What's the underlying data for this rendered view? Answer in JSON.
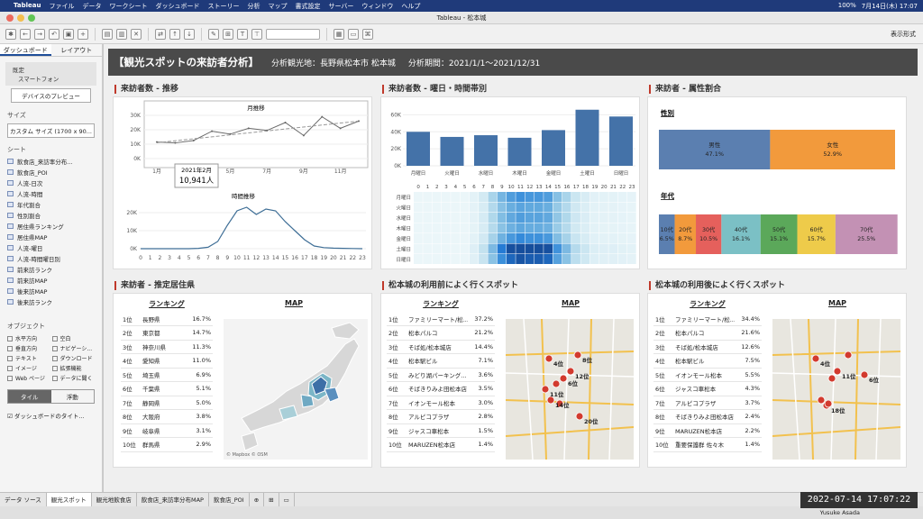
{
  "mac": {
    "menus": [
      "Tableau",
      "ファイル",
      "データ",
      "ワークシート",
      "ダッシュボード",
      "ストーリー",
      "分析",
      "マップ",
      "書式設定",
      "サーバー",
      "ウィンドウ",
      "ヘルプ"
    ],
    "battery": "100%",
    "datetime": "7月14日(木) 17:07"
  },
  "window": {
    "title": "Tableau - 松本城"
  },
  "toolbar": {
    "present_label": "表示形式"
  },
  "left": {
    "tabs": [
      "ダッシュボード",
      "レイアウト"
    ],
    "device_label": "既定",
    "device_value": "スマートフォン",
    "preview_btn": "デバイスのプレビュー",
    "size_label": "サイズ",
    "size_value": "カスタム サイズ (1700 x 90...",
    "sheet_label": "シート",
    "sheets": [
      "飲食店_来訪率分布...",
      "飲食店_POI",
      "人流-日次",
      "人流-時間",
      "年代割合",
      "性別割合",
      "居住県ランキング",
      "居住県MAP",
      "人流-曜日",
      "人流-時間曜日別",
      "前来訪ランク",
      "前来訪MAP",
      "後来訪MAP",
      "後来訪ランク"
    ],
    "objects_label": "オブジェクト",
    "objects": [
      "水平方向",
      "空白",
      "垂直方向",
      "ナビゲーシ...",
      "テキスト",
      "ダウンロード",
      "イメージ",
      "拡張機能",
      "Web ページ",
      "データに聞く"
    ],
    "tile": "タイル",
    "float": "浮動",
    "title_check": "ダッシュボードのタイト..."
  },
  "header": {
    "title": "【観光スポットの来訪者分析】",
    "place": "分析観光地：長野県松本市 松本城",
    "period": "分析期間：2021/1/1～2021/12/31"
  },
  "sections": {
    "trend": "来訪者数 - 推移",
    "weekday": "来訪者数 - 曜日・時間帯別",
    "attr": "来訪者 - 属性割合",
    "pref": "来訪者 - 推定居住県",
    "before": "松本城の利用前によく行くスポット",
    "after": "松本城の利用後によく行くスポット"
  },
  "trend": {
    "month_title": "月推移",
    "hour_title": "時間推移",
    "tooltip_date": "2021年2月",
    "tooltip_value": "10,941人",
    "month": {
      "x_ticks": [
        "1月",
        "3月",
        "5月",
        "7月",
        "9月",
        "11月"
      ],
      "y_ticks": [
        "0K",
        "10K",
        "20K",
        "30K"
      ],
      "values": [
        11.5,
        10.9,
        12.5,
        19.0,
        17.0,
        21.0,
        19.5,
        25.0,
        16.0,
        29.0,
        21.0,
        26.0
      ]
    },
    "hour": {
      "x_ticks": [
        "0",
        "1",
        "2",
        "3",
        "4",
        "5",
        "6",
        "7",
        "8",
        "9",
        "10",
        "11",
        "12",
        "13",
        "14",
        "15",
        "16",
        "17",
        "18",
        "19",
        "20",
        "21",
        "22",
        "23"
      ],
      "y_ticks": [
        "0K",
        "10K",
        "20K"
      ],
      "values": [
        0,
        0,
        0,
        0,
        0,
        0,
        0.2,
        0.8,
        4,
        13,
        21,
        23,
        19,
        22,
        21,
        15,
        10,
        5,
        1.5,
        0.6,
        0.3,
        0.2,
        0.1,
        0
      ]
    }
  },
  "weekday": {
    "days": [
      "月曜日",
      "火曜日",
      "水曜日",
      "木曜日",
      "金曜日",
      "土曜日",
      "日曜日"
    ],
    "values": [
      40000,
      34000,
      36000,
      33000,
      42000,
      66000,
      58000
    ],
    "y_ticks": [
      "0K",
      "20K",
      "40K",
      "60K"
    ],
    "hours": [
      "0",
      "1",
      "2",
      "3",
      "4",
      "5",
      "6",
      "7",
      "8",
      "9",
      "10",
      "11",
      "12",
      "13",
      "14",
      "15",
      "16",
      "17",
      "18",
      "19",
      "20",
      "21",
      "22",
      "23"
    ]
  },
  "attr": {
    "gender_label": "性別",
    "male_label": "男性",
    "male_pct": "47.1%",
    "female_label": "女性",
    "female_pct": "52.9%",
    "male": 47.1,
    "female": 52.9,
    "age_label": "年代",
    "ages": [
      {
        "label": "10代",
        "pct": "6.5%",
        "v": 6.5,
        "color": "#5b7fb0"
      },
      {
        "label": "20代",
        "pct": "8.7%",
        "v": 8.7,
        "color": "#f29a3c"
      },
      {
        "label": "30代",
        "pct": "10.5%",
        "v": 10.5,
        "color": "#e5605c"
      },
      {
        "label": "40代",
        "pct": "16.1%",
        "v": 16.1,
        "color": "#7bc0c5"
      },
      {
        "label": "50代",
        "pct": "15.1%",
        "v": 15.1,
        "color": "#5ba85a"
      },
      {
        "label": "60代",
        "pct": "15.7%",
        "v": 15.7,
        "color": "#eecb4a"
      },
      {
        "label": "70代",
        "pct": "25.5%",
        "v": 25.5,
        "color": "#c391b4"
      }
    ]
  },
  "pref": {
    "rank_header": "ランキング",
    "map_header": "MAP",
    "rows": [
      [
        "1位",
        "長野県",
        "16.7%"
      ],
      [
        "2位",
        "東京都",
        "14.7%"
      ],
      [
        "3位",
        "神奈川県",
        "11.3%"
      ],
      [
        "4位",
        "愛知県",
        "11.0%"
      ],
      [
        "5位",
        "埼玉県",
        "6.9%"
      ],
      [
        "6位",
        "千葉県",
        "5.1%"
      ],
      [
        "7位",
        "静岡県",
        "5.0%"
      ],
      [
        "8位",
        "大阪府",
        "3.8%"
      ],
      [
        "9位",
        "岐阜県",
        "3.1%"
      ],
      [
        "10位",
        "群馬県",
        "2.9%"
      ]
    ],
    "credit": "© Mapbox © OSM"
  },
  "before": {
    "rank_header": "ランキング",
    "map_header": "MAP",
    "rows": [
      [
        "1位",
        "ファミリーマート/松...",
        "37.2%"
      ],
      [
        "2位",
        "松本パルコ",
        "21.2%"
      ],
      [
        "3位",
        "そば処/松本城店",
        "14.4%"
      ],
      [
        "4位",
        "松本駅ビル",
        "7.1%"
      ],
      [
        "5位",
        "みどり湖パーキング...",
        "3.6%"
      ],
      [
        "6位",
        "そばきりみよ田松本店",
        "3.5%"
      ],
      [
        "7位",
        "イオンモール松本",
        "3.0%"
      ],
      [
        "8位",
        "アルピコプラザ",
        "2.8%"
      ],
      [
        "9位",
        "ジャスコ車松本",
        "1.5%"
      ],
      [
        "10位",
        "MARUZEN松本店",
        "1.4%"
      ]
    ],
    "map_labels": [
      "4位",
      "12位",
      "6位",
      "8位",
      "14位",
      "20位",
      "11位"
    ]
  },
  "after": {
    "rank_header": "ランキング",
    "map_header": "MAP",
    "rows": [
      [
        "1位",
        "ファミリーマート/松...",
        "34.4%"
      ],
      [
        "2位",
        "松本パルコ",
        "21.6%"
      ],
      [
        "3位",
        "そば処/松本城店",
        "12.6%"
      ],
      [
        "4位",
        "松本駅ビル",
        "7.5%"
      ],
      [
        "5位",
        "イオンモール松本",
        "5.5%"
      ],
      [
        "6位",
        "ジャスコ車松本",
        "4.3%"
      ],
      [
        "7位",
        "アルピコプラザ",
        "3.7%"
      ],
      [
        "8位",
        "そばきりみよ田松本店",
        "2.4%"
      ],
      [
        "9位",
        "MARUZEN松本店",
        "2.2%"
      ],
      [
        "10位",
        "重要保護群 佐々木",
        "1.4%"
      ]
    ],
    "map_labels": [
      "4位",
      "11位",
      "6位",
      "18位"
    ]
  },
  "sheettabs": {
    "source": "データ ソース",
    "tabs": [
      "観光スポット",
      "観光地飲食店",
      "飲食店_来訪率分布MAP",
      "飲食店_POI"
    ]
  },
  "status": {
    "user": "Yusuke Asada",
    "clock": "2022-07-14  17:07:22"
  },
  "colors": {
    "bar": "#4472a8",
    "header": "#4a4a4a",
    "accent": "#c0392b"
  }
}
